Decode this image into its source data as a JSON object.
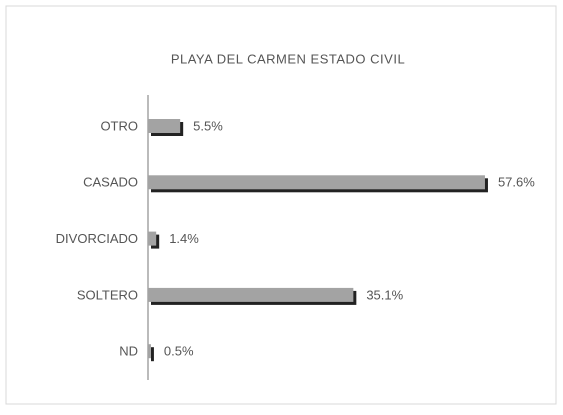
{
  "chart_data": {
    "type": "bar",
    "orientation": "horizontal",
    "title": "PLAYA DEL CARMEN ESTADO CIVIL",
    "categories": [
      "OTRO",
      "CASADO",
      "DIVORCIADO",
      "SOLTERO",
      "ND"
    ],
    "values": [
      5.5,
      57.6,
      1.4,
      35.1,
      0.5
    ],
    "value_labels": [
      "5.5%",
      "57.6%",
      "1.4%",
      "35.1%",
      "0.5%"
    ],
    "color": "#a3a3a3"
  }
}
